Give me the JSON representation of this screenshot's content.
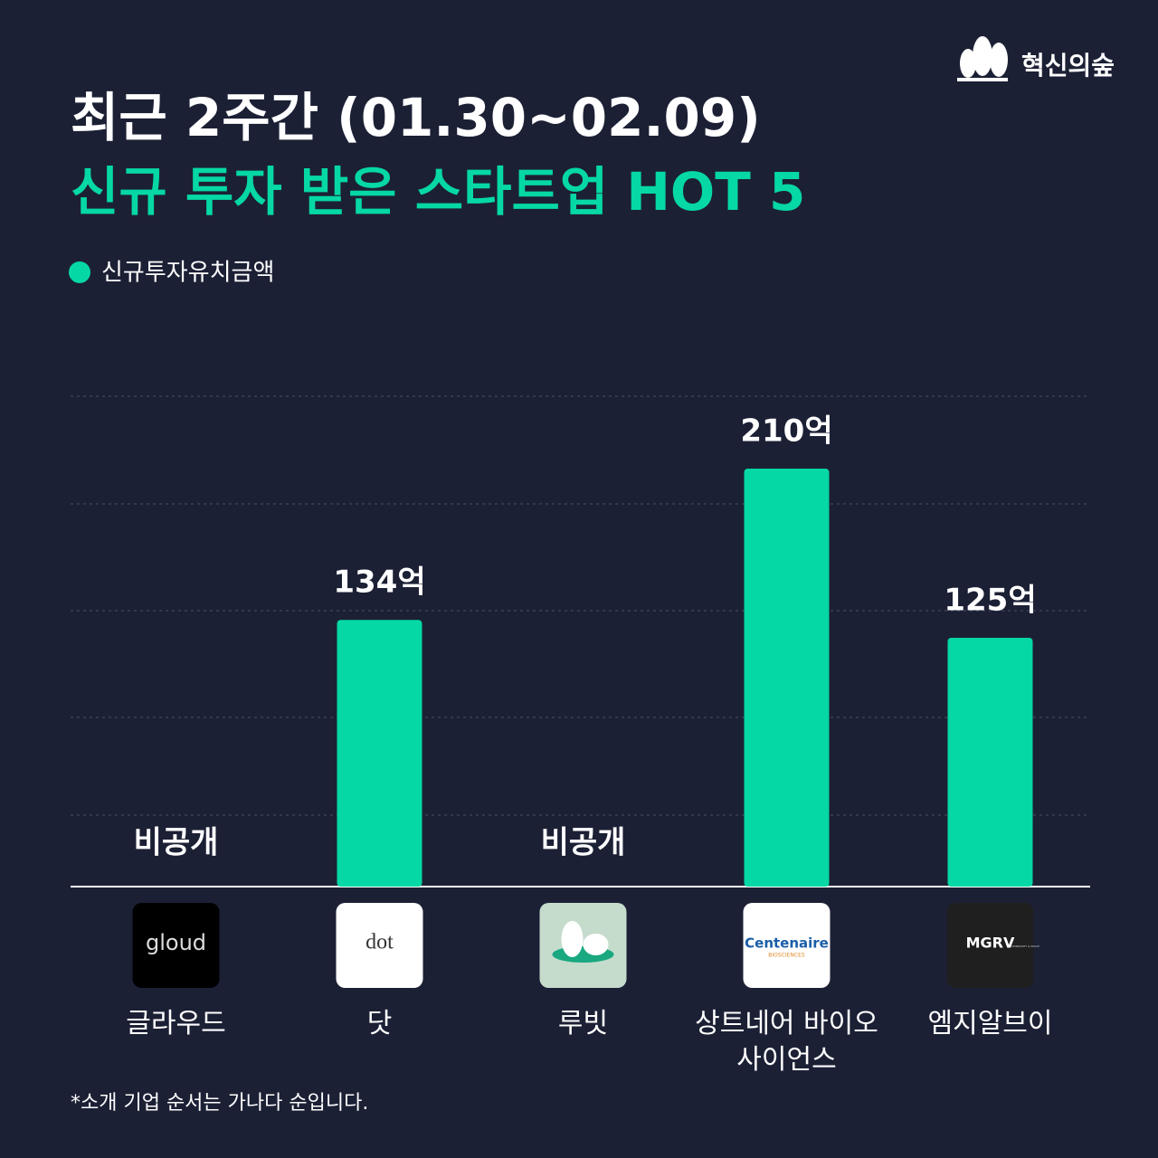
{
  "brand": "혁신의숲",
  "logos": [
    "gloud",
    "dot",
    null,
    "Centenaire",
    "MGRV"
  ],
  "logo_notes": [
    null,
    null,
    null,
    "BIOSCIENCES",
    "COMMUNITY & SPACE"
  ],
  "footnote": "*소개 기업 순서는 가나다 순입니다.",
  "chart_data": {
    "type": "bar",
    "title": "최근 2주간 (01.30~02.09)",
    "subtitle": "신규 투자 받은 스타트업 HOT 5",
    "categories": [
      "글라우드",
      "닷",
      "루빗",
      "상트네어 바이오사이언스",
      "엠지알브이"
    ],
    "series": [
      {
        "name": "신규투자유치금액",
        "color": "#05d8a4",
        "values": [
          null,
          134,
          null,
          210,
          125
        ],
        "value_labels": [
          "비공개",
          "134억",
          "비공개",
          "210억",
          "125억"
        ]
      }
    ],
    "ylim": [
      0,
      250
    ],
    "legend": "top-left"
  }
}
